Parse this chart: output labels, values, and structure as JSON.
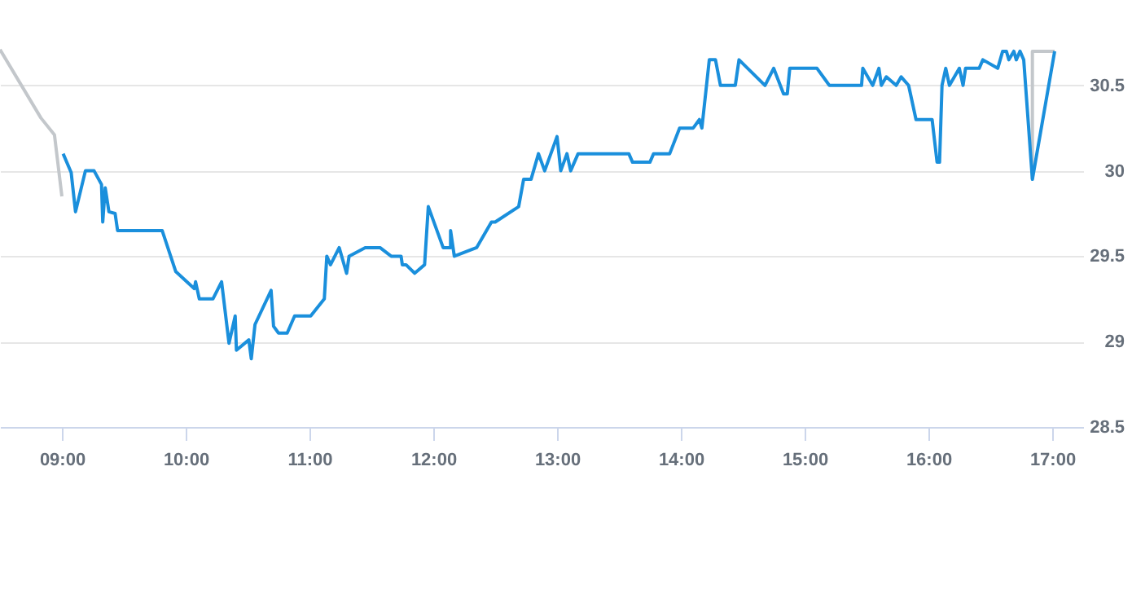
{
  "chart_data": {
    "type": "line",
    "xlim": [
      8.5,
      17.25
    ],
    "ylim": [
      28.5,
      31
    ],
    "xticks": [
      {
        "value": 9,
        "label": "09:00"
      },
      {
        "value": 10,
        "label": "10:00"
      },
      {
        "value": 11,
        "label": "11:00"
      },
      {
        "value": 12,
        "label": "12:00"
      },
      {
        "value": 13,
        "label": "13:00"
      },
      {
        "value": 14,
        "label": "14:00"
      },
      {
        "value": 15,
        "label": "15:00"
      },
      {
        "value": 16,
        "label": "16:00"
      },
      {
        "value": 17,
        "label": "17:00"
      }
    ],
    "yticks": [
      28.5,
      29,
      29.5,
      30,
      30.5
    ],
    "grid": "y",
    "marker": "none",
    "line_style": "solid",
    "series": [
      {
        "color": "#c3c7cb",
        "x": [
          8.5,
          8.83,
          8.94,
          9.0,
          null,
          16.84,
          16.84,
          17.02
        ],
        "values": [
          30.71,
          30.31,
          30.21,
          29.85,
          null,
          29.95,
          30.7,
          30.7
        ]
      },
      {
        "color": "#1a8fdc",
        "x": [
          9.01,
          9.075,
          9.11,
          9.19,
          9.26,
          9.32,
          9.33,
          9.35,
          9.38,
          9.43,
          9.45,
          9.81,
          9.92,
          10.07,
          10.08,
          10.11,
          10.22,
          10.29,
          10.35,
          10.4,
          10.41,
          10.51,
          10.53,
          10.56,
          10.69,
          10.71,
          10.75,
          10.82,
          10.88,
          11.01,
          11.12,
          11.14,
          11.17,
          11.24,
          11.3,
          11.32,
          11.45,
          11.57,
          11.66,
          11.74,
          11.75,
          11.78,
          11.85,
          11.93,
          11.96,
          12.08,
          12.14,
          12.14,
          12.17,
          12.35,
          12.47,
          12.5,
          12.69,
          12.73,
          12.79,
          12.85,
          12.9,
          13.0,
          13.03,
          13.08,
          13.11,
          13.17,
          13.58,
          13.61,
          13.75,
          13.78,
          13.91,
          13.99,
          14.1,
          14.15,
          14.17,
          14.23,
          14.28,
          14.32,
          14.44,
          14.47,
          14.68,
          14.75,
          14.83,
          14.86,
          14.88,
          15.1,
          15.2,
          15.46,
          15.47,
          15.55,
          15.6,
          15.62,
          15.66,
          15.74,
          15.78,
          15.84,
          15.9,
          16.03,
          16.07,
          16.09,
          16.11,
          16.14,
          16.17,
          16.25,
          16.28,
          16.3,
          16.41,
          16.44,
          16.56,
          16.6,
          16.63,
          16.65,
          16.69,
          16.71,
          16.74,
          16.77,
          16.84,
          17.02
        ],
        "values": [
          30.1,
          29.99,
          29.76,
          30.0,
          30.0,
          29.92,
          29.7,
          29.9,
          29.76,
          29.75,
          29.65,
          29.65,
          29.41,
          29.31,
          29.35,
          29.25,
          29.25,
          29.35,
          28.99,
          29.15,
          28.95,
          29.01,
          28.9,
          29.1,
          29.3,
          29.09,
          29.05,
          29.05,
          29.15,
          29.15,
          29.25,
          29.5,
          29.45,
          29.55,
          29.4,
          29.5,
          29.55,
          29.55,
          29.5,
          29.5,
          29.45,
          29.45,
          29.4,
          29.45,
          29.79,
          29.55,
          29.55,
          29.65,
          29.5,
          29.55,
          29.7,
          29.7,
          29.79,
          29.95,
          29.95,
          30.1,
          30.0,
          30.2,
          30.0,
          30.1,
          30.0,
          30.1,
          30.1,
          30.05,
          30.05,
          30.1,
          30.1,
          30.25,
          30.25,
          30.3,
          30.25,
          30.65,
          30.65,
          30.5,
          30.5,
          30.65,
          30.5,
          30.6,
          30.45,
          30.45,
          30.6,
          30.6,
          30.5,
          30.5,
          30.6,
          30.5,
          30.6,
          30.5,
          30.55,
          30.5,
          30.55,
          30.5,
          30.3,
          30.3,
          30.05,
          30.05,
          30.5,
          30.6,
          30.5,
          30.6,
          30.5,
          30.6,
          30.6,
          30.65,
          30.6,
          30.7,
          30.7,
          30.65,
          30.7,
          30.65,
          30.7,
          30.65,
          29.95,
          30.7
        ]
      }
    ]
  }
}
